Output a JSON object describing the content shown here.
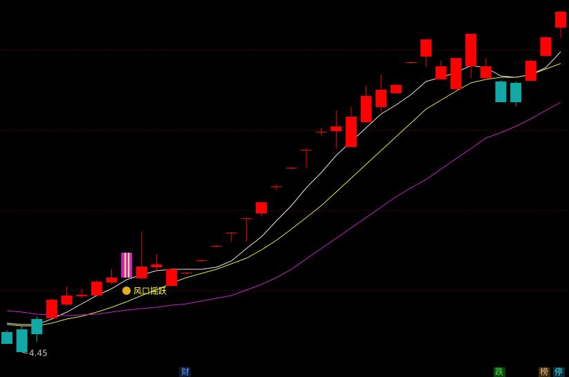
{
  "chart_data": {
    "type": "candlestick",
    "ylim": [
      4.09,
      9.55
    ],
    "gridlines": [
      8.82,
      7.66,
      6.5,
      5.34
    ],
    "up_color": "#ff0000",
    "down_color": "#12a8a8",
    "highlight_color": "#cc22cc",
    "highlight_index": 8,
    "open": [
      4.74,
      4.78,
      4.93,
      4.94,
      5.14,
      5.26,
      5.27,
      5.46,
      5.53,
      5.52,
      5.68,
      5.41,
      5.59,
      5.77,
      5.98,
      6.17,
      6.38,
      6.46,
      6.84,
      7.11,
      7.37,
      7.63,
      7.65,
      7.42,
      7.78,
      8.0,
      8.2,
      8.64,
      8.73,
      8.4,
      8.26,
      8.59,
      8.42,
      8.37,
      8.35,
      8.38,
      8.74,
      9.15
    ],
    "high": [
      4.77,
      4.85,
      4.97,
      5.23,
      5.4,
      5.37,
      5.5,
      5.65,
      5.89,
      6.2,
      5.87,
      5.67,
      5.61,
      5.79,
      6.0,
      6.19,
      6.4,
      6.63,
      6.88,
      7.13,
      7.4,
      7.7,
      7.95,
      8.0,
      8.31,
      8.47,
      8.33,
      8.66,
      8.98,
      8.67,
      8.71,
      9.06,
      8.71,
      8.39,
      8.37,
      8.69,
      9.03,
      9.4
    ],
    "low": [
      4.57,
      4.45,
      4.6,
      4.94,
      5.12,
      5.23,
      5.27,
      5.43,
      5.53,
      5.5,
      5.62,
      5.4,
      5.58,
      5.76,
      5.97,
      6.05,
      6.05,
      6.42,
      6.8,
      7.1,
      7.12,
      7.59,
      7.4,
      7.42,
      7.78,
      7.93,
      8.2,
      8.63,
      8.58,
      8.4,
      8.25,
      8.42,
      8.4,
      8.07,
      8.01,
      8.38,
      8.73,
      9.0
    ],
    "close": [
      4.57,
      4.45,
      4.71,
      5.21,
      5.27,
      5.28,
      5.47,
      5.53,
      5.89,
      5.69,
      5.72,
      5.65,
      5.6,
      5.78,
      5.99,
      6.18,
      6.39,
      6.62,
      6.85,
      7.12,
      7.38,
      7.64,
      7.72,
      7.86,
      8.16,
      8.25,
      8.32,
      8.65,
      8.98,
      8.59,
      8.71,
      9.06,
      8.59,
      8.07,
      8.07,
      8.67,
      9.01,
      9.38
    ],
    "series": [
      {
        "color": "#e8e8e8",
        "values": [
          4.87,
          4.85,
          4.85,
          4.93,
          5.03,
          5.15,
          5.27,
          5.37,
          5.5,
          5.57,
          5.63,
          5.65,
          5.65,
          5.65,
          5.68,
          5.77,
          5.95,
          6.12,
          6.35,
          6.57,
          6.83,
          7.05,
          7.3,
          7.5,
          7.7,
          7.9,
          8.03,
          8.18,
          8.37,
          8.43,
          8.5,
          8.6,
          8.57,
          8.45,
          8.43,
          8.47,
          8.57,
          8.8
        ]
      },
      {
        "color": "#e8e840",
        "values": [
          4.85,
          4.83,
          4.83,
          4.87,
          4.93,
          4.97,
          5.03,
          5.1,
          5.18,
          5.27,
          5.35,
          5.45,
          5.53,
          5.59,
          5.65,
          5.73,
          5.81,
          5.93,
          6.07,
          6.23,
          6.4,
          6.57,
          6.77,
          6.97,
          7.17,
          7.37,
          7.57,
          7.77,
          7.97,
          8.1,
          8.23,
          8.35,
          8.4,
          8.43,
          8.43,
          8.47,
          8.55,
          8.63
        ]
      },
      {
        "color": "#d020d0",
        "values": [
          5.05,
          5.03,
          5.0,
          4.99,
          4.98,
          4.99,
          5.0,
          5.03,
          5.06,
          5.08,
          5.1,
          5.13,
          5.15,
          5.19,
          5.23,
          5.27,
          5.35,
          5.43,
          5.53,
          5.65,
          5.8,
          5.95,
          6.1,
          6.25,
          6.4,
          6.55,
          6.7,
          6.83,
          6.95,
          7.1,
          7.25,
          7.4,
          7.55,
          7.63,
          7.72,
          7.83,
          7.95,
          8.07
        ]
      }
    ],
    "low_marker": 4.45,
    "annotation": "风口摇跃",
    "markers": [
      "财",
      "跌",
      "榜",
      "停"
    ]
  }
}
